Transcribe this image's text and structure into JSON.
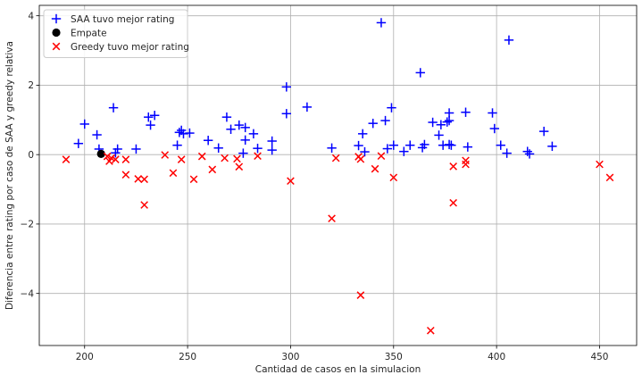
{
  "chart_data": {
    "type": "scatter",
    "title": "",
    "xlabel": "Cantidad de casos en la simulacion",
    "ylabel": "Diferencia entre rating por caso de SAA y greedy relativa",
    "xlim": [
      178,
      468
    ],
    "ylim": [
      -5.5,
      4.3
    ],
    "xticks": [
      200,
      250,
      300,
      350,
      400,
      450
    ],
    "yticks": [
      -4,
      -2,
      0,
      2,
      4
    ],
    "grid": true,
    "legend_position": "top-left",
    "series": [
      {
        "name": "SAA tuvo mejor rating",
        "marker": "plus",
        "color": "#0000ff",
        "points": [
          [
            197,
            0.32
          ],
          [
            200,
            0.88
          ],
          [
            206,
            0.57
          ],
          [
            207,
            0.16
          ],
          [
            214,
            1.35
          ],
          [
            215,
            0.05
          ],
          [
            216,
            0.16
          ],
          [
            225,
            0.16
          ],
          [
            231,
            1.08
          ],
          [
            232,
            0.85
          ],
          [
            234,
            1.13
          ],
          [
            245,
            0.27
          ],
          [
            246,
            0.64
          ],
          [
            247,
            0.7
          ],
          [
            248,
            0.6
          ],
          [
            251,
            0.62
          ],
          [
            260,
            0.41
          ],
          [
            265,
            0.19
          ],
          [
            269,
            1.08
          ],
          [
            271,
            0.73
          ],
          [
            275,
            0.85
          ],
          [
            277,
            0.04
          ],
          [
            278,
            0.42
          ],
          [
            278,
            0.78
          ],
          [
            282,
            0.6
          ],
          [
            284,
            0.18
          ],
          [
            291,
            0.39
          ],
          [
            291,
            0.13
          ],
          [
            298,
            1.95
          ],
          [
            298,
            1.18
          ],
          [
            308,
            1.37
          ],
          [
            320,
            0.19
          ],
          [
            333,
            0.26
          ],
          [
            335,
            0.6
          ],
          [
            336,
            0.08
          ],
          [
            340,
            0.9
          ],
          [
            344,
            3.8
          ],
          [
            346,
            0.98
          ],
          [
            347,
            0.17
          ],
          [
            349,
            1.35
          ],
          [
            350,
            0.27
          ],
          [
            355,
            0.09
          ],
          [
            358,
            0.27
          ],
          [
            363,
            2.36
          ],
          [
            364,
            0.2
          ],
          [
            365,
            0.29
          ],
          [
            369,
            0.93
          ],
          [
            372,
            0.56
          ],
          [
            373,
            0.86
          ],
          [
            374,
            0.27
          ],
          [
            376,
            0.94
          ],
          [
            377,
            1.2
          ],
          [
            377,
            0.98
          ],
          [
            377,
            0.29
          ],
          [
            378,
            0.27
          ],
          [
            385,
            1.22
          ],
          [
            386,
            0.22
          ],
          [
            398,
            1.2
          ],
          [
            399,
            0.75
          ],
          [
            402,
            0.27
          ],
          [
            405,
            0.04
          ],
          [
            406,
            3.3
          ],
          [
            415,
            0.09
          ],
          [
            416,
            0.02
          ],
          [
            423,
            0.67
          ],
          [
            427,
            0.24
          ]
        ]
      },
      {
        "name": "Empate",
        "marker": "circle",
        "color": "#000000",
        "points": [
          [
            208,
            0.02
          ]
        ]
      },
      {
        "name": "Greedy tuvo mejor rating",
        "marker": "x",
        "color": "#ff0000",
        "points": [
          [
            191,
            -0.14
          ],
          [
            211,
            -0.05
          ],
          [
            212,
            -0.19
          ],
          [
            213,
            -0.1
          ],
          [
            215,
            -0.14
          ],
          [
            220,
            -0.58
          ],
          [
            220,
            -0.14
          ],
          [
            226,
            -0.7
          ],
          [
            229,
            -0.71
          ],
          [
            229,
            -1.45
          ],
          [
            239,
            -0.01
          ],
          [
            243,
            -0.53
          ],
          [
            247,
            -0.14
          ],
          [
            253,
            -0.71
          ],
          [
            257,
            -0.05
          ],
          [
            262,
            -0.43
          ],
          [
            268,
            -0.1
          ],
          [
            274,
            -0.12
          ],
          [
            275,
            -0.35
          ],
          [
            284,
            -0.04
          ],
          [
            300,
            -0.76
          ],
          [
            320,
            -1.84
          ],
          [
            322,
            -0.1
          ],
          [
            333,
            -0.06
          ],
          [
            334,
            -0.13
          ],
          [
            334,
            -4.05
          ],
          [
            341,
            -0.41
          ],
          [
            344,
            -0.04
          ],
          [
            350,
            -0.66
          ],
          [
            368,
            -5.07
          ],
          [
            379,
            -0.34
          ],
          [
            379,
            -1.39
          ],
          [
            385,
            -0.17
          ],
          [
            385,
            -0.28
          ],
          [
            450,
            -0.28
          ],
          [
            455,
            -0.66
          ]
        ]
      }
    ]
  }
}
